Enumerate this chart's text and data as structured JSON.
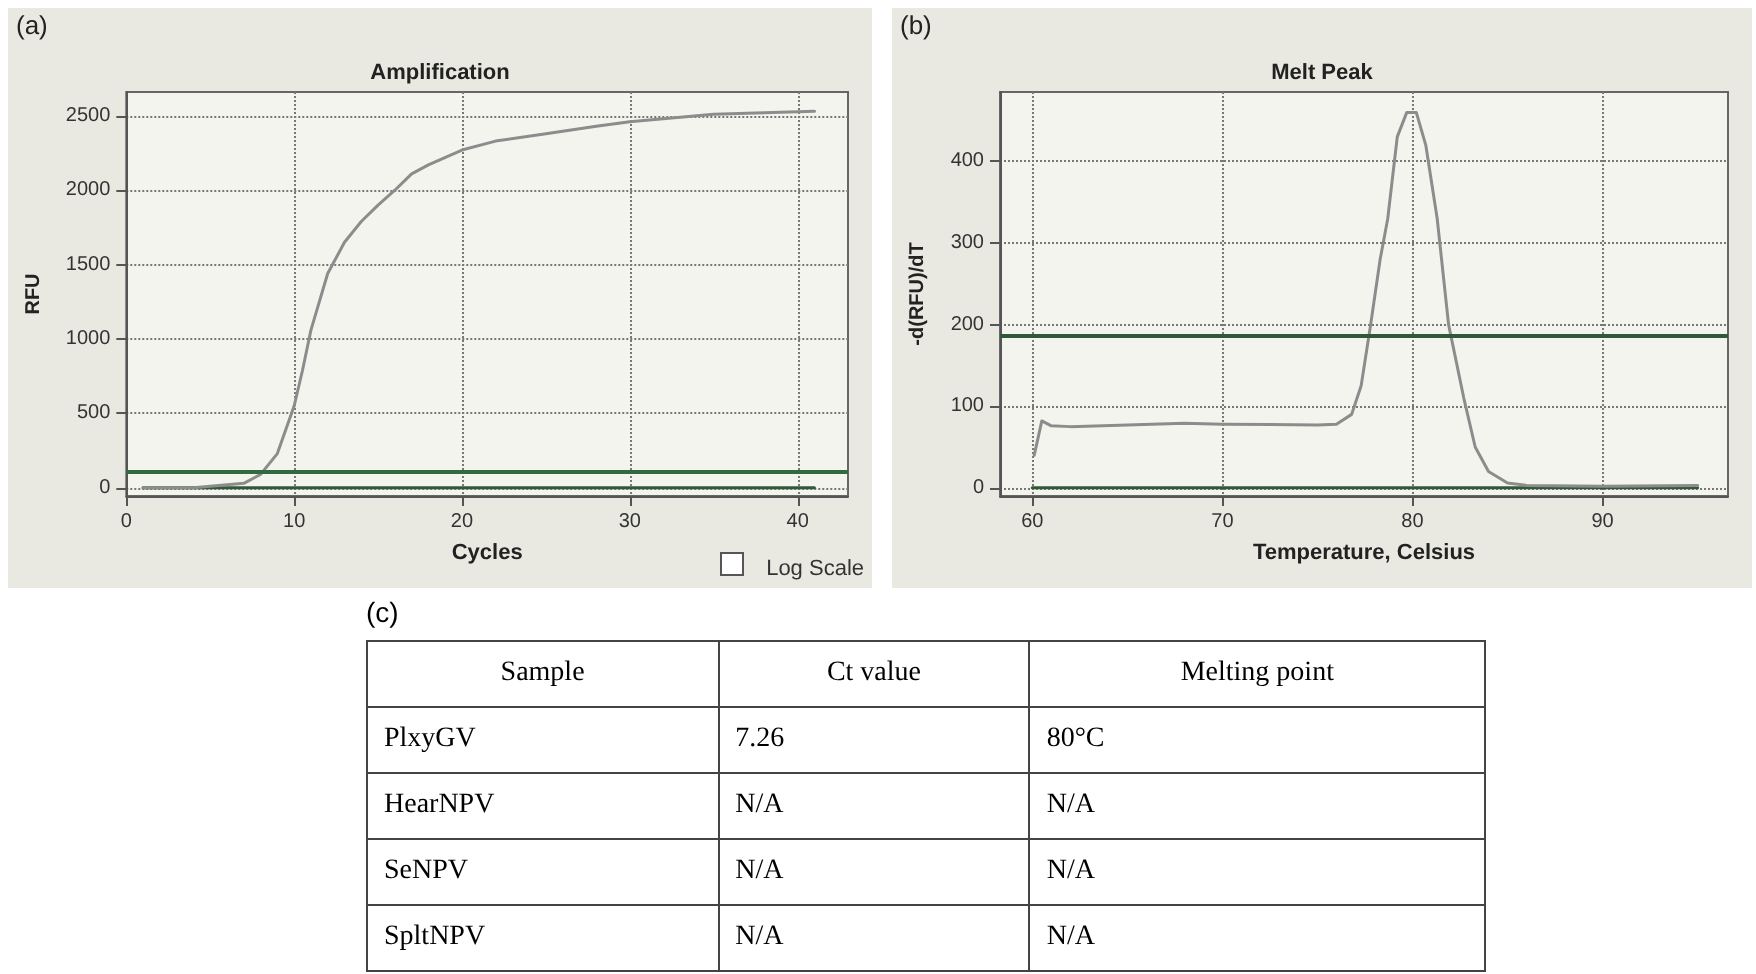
{
  "chart_data": [
    {
      "type": "line",
      "title": "Amplification",
      "xlabel": "Cycles",
      "ylabel": "RFU",
      "annotations": [
        "(a)",
        "Log Scale"
      ],
      "xlim": [
        0,
        43
      ],
      "xticks": [
        0,
        10,
        20,
        30,
        40
      ],
      "ylim": [
        -55,
        2660
      ],
      "yticks": [
        0,
        500,
        1000,
        1500,
        2000,
        2500
      ],
      "grid": true,
      "marker": "none",
      "line_style": "solid",
      "ref_lines": [
        {
          "axis": "y",
          "value": 115,
          "color": "#2f6b3f"
        }
      ],
      "series": [
        {
          "color": "#2f5a3a",
          "x": [
            1,
            41
          ],
          "values": [
            0,
            0
          ]
        },
        {
          "color": "#8c8c8c",
          "x": [
            1,
            4,
            5,
            6,
            7,
            8,
            9,
            10,
            10.5,
            11,
            12,
            13,
            14,
            15,
            16,
            17,
            18,
            20,
            22,
            25,
            28,
            30,
            33,
            35,
            38,
            41
          ],
          "values": [
            0,
            0,
            10,
            20,
            30,
            90,
            230,
            550,
            790,
            1060,
            1440,
            1650,
            1790,
            1900,
            2000,
            2110,
            2170,
            2270,
            2330,
            2380,
            2430,
            2460,
            2490,
            2510,
            2520,
            2530
          ]
        }
      ]
    },
    {
      "type": "line",
      "title": "Melt Peak",
      "xlabel": "Temperature, Celsius",
      "ylabel": "-d(RFU)/dT",
      "annotations": [
        "(b)"
      ],
      "xlim": [
        58.3,
        96.6
      ],
      "xticks": [
        60,
        70,
        80,
        90
      ],
      "ylim": [
        -10,
        485
      ],
      "yticks": [
        0,
        100,
        200,
        300,
        400
      ],
      "grid": true,
      "marker": "none",
      "line_style": "solid",
      "ref_lines": [
        {
          "axis": "y",
          "value": 187,
          "color": "#2f5a3a"
        }
      ],
      "series": [
        {
          "color": "#2f5a3a",
          "x": [
            60,
            95
          ],
          "values": [
            0,
            0
          ]
        },
        {
          "color": "#8c8c8c",
          "x": [
            60.1,
            60.5,
            61,
            62,
            65,
            68,
            70,
            75,
            76,
            76.8,
            77.3,
            77.8,
            78.3,
            78.7,
            79.2,
            79.7,
            80.2,
            80.7,
            81.3,
            81.9,
            82.7,
            83.3,
            84,
            85,
            86,
            90,
            95
          ],
          "values": [
            40,
            82,
            76,
            75,
            77,
            79,
            78,
            77,
            78,
            90,
            125,
            200,
            280,
            330,
            430,
            460,
            460,
            420,
            330,
            200,
            110,
            50,
            20,
            6,
            3,
            2,
            3
          ]
        }
      ]
    },
    {
      "type": "other",
      "title": "(c)",
      "categories": [
        "Sample",
        "Ct value",
        "Melting point"
      ],
      "y_categories": [
        "PlxyGV",
        "HearNPV",
        "SeNPV",
        "SpltNPV"
      ],
      "cell_labels": [
        [
          "7.26",
          "80°C"
        ],
        [
          "N/A",
          "N/A"
        ],
        [
          "N/A",
          "N/A"
        ],
        [
          "N/A",
          "N/A"
        ]
      ]
    }
  ]
}
